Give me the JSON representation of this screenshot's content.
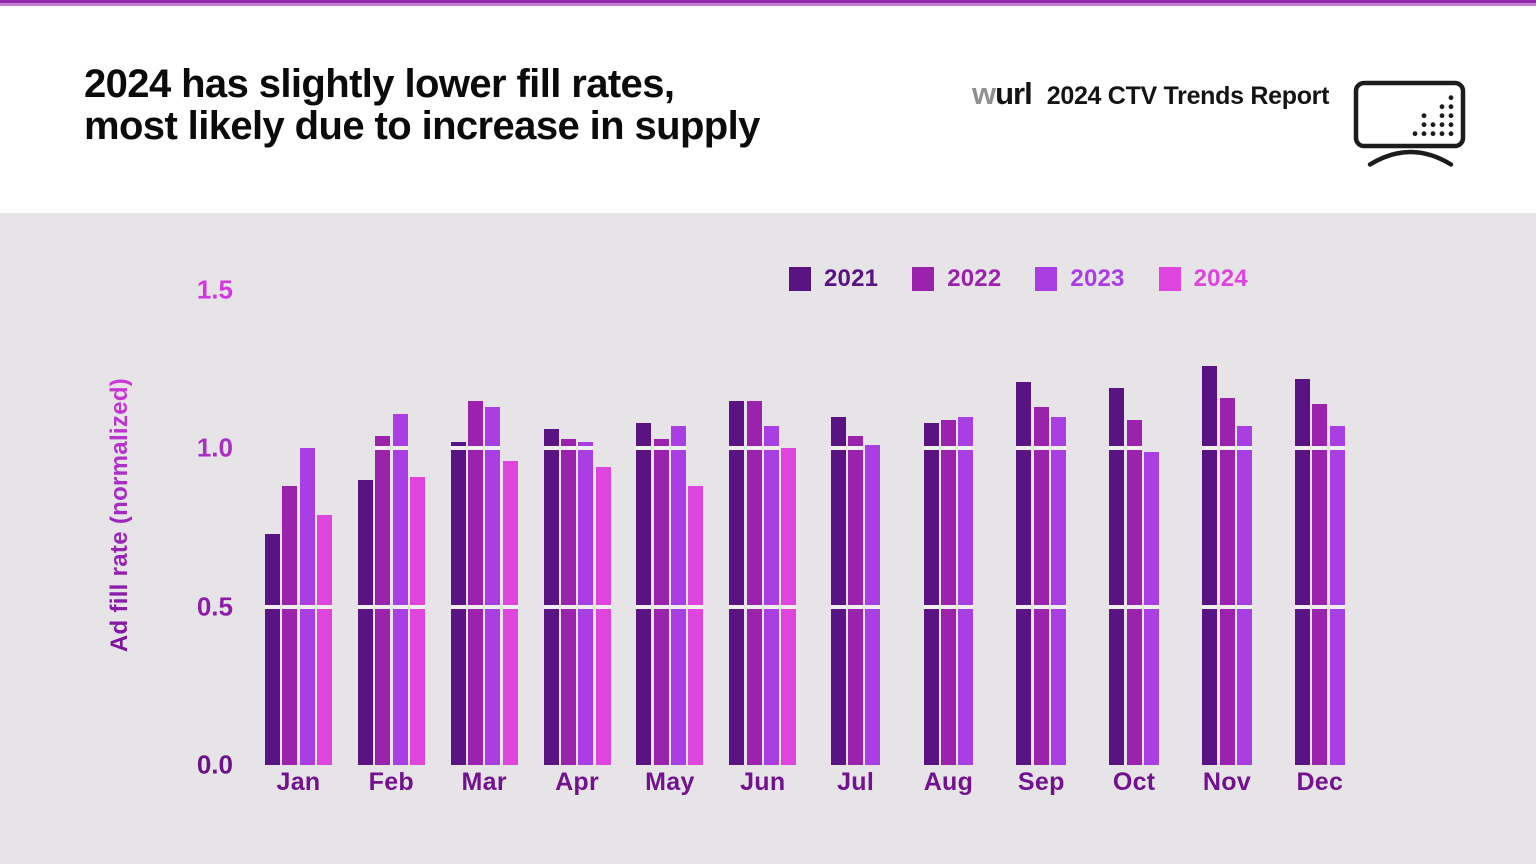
{
  "topbar": {
    "color": "#8e2ba9",
    "underline_color": "#c77fd4"
  },
  "header": {
    "title_line1": "2024 has slightly lower fill rates,",
    "title_line2": "most likely due to increase in supply",
    "brand": "wurl",
    "brand_w": "w",
    "brand_rest": "url",
    "report_title": "2024 CTV Trends Report"
  },
  "icons": {
    "tv_icon": "tv-screen-with-rising-dot-chart"
  },
  "chart_data": {
    "type": "bar",
    "title": "2024 has slightly lower fill rates, most likely due to increase in supply",
    "xlabel": "",
    "ylabel": "Ad fill rate (normalized)",
    "ylim": [
      0,
      1.5
    ],
    "background": "#e6e4e6",
    "grid": "white gridline segments drawn across bars at 0.5 and 1.0",
    "gridlines_over_bars": [
      0.5,
      1.0
    ],
    "legend_position": "top-right",
    "yticks": [
      {
        "label": "1.5",
        "value": 1.5,
        "color": "#d338e0"
      },
      {
        "label": "1.0",
        "value": 1.0,
        "color": "#a72fc5"
      },
      {
        "label": "0.5",
        "value": 0.5,
        "color": "#8c1da8"
      },
      {
        "label": "0.0",
        "value": 0.0,
        "color": "#6b1488"
      }
    ],
    "categories": [
      "Jan",
      "Feb",
      "Mar",
      "Apr",
      "May",
      "Jun",
      "Jul",
      "Aug",
      "Sep",
      "Oct",
      "Nov",
      "Dec"
    ],
    "series": [
      {
        "name": "2021",
        "color": "#5a1382",
        "values": [
          0.73,
          0.9,
          1.02,
          1.06,
          1.08,
          1.15,
          1.1,
          1.08,
          1.21,
          1.19,
          1.26,
          1.22
        ]
      },
      {
        "name": "2022",
        "color": "#9a22ad",
        "values": [
          0.88,
          1.04,
          1.15,
          1.03,
          1.03,
          1.15,
          1.04,
          1.09,
          1.13,
          1.09,
          1.16,
          1.14
        ]
      },
      {
        "name": "2023",
        "color": "#a93ee3",
        "values": [
          1.0,
          1.11,
          1.13,
          1.02,
          1.07,
          1.07,
          1.01,
          1.1,
          1.1,
          0.99,
          1.07,
          1.07
        ]
      },
      {
        "name": "2024",
        "color": "#dd45dd",
        "values": [
          0.79,
          0.91,
          0.96,
          0.94,
          0.88,
          1.0,
          null,
          null,
          null,
          null,
          null,
          null
        ]
      }
    ]
  }
}
